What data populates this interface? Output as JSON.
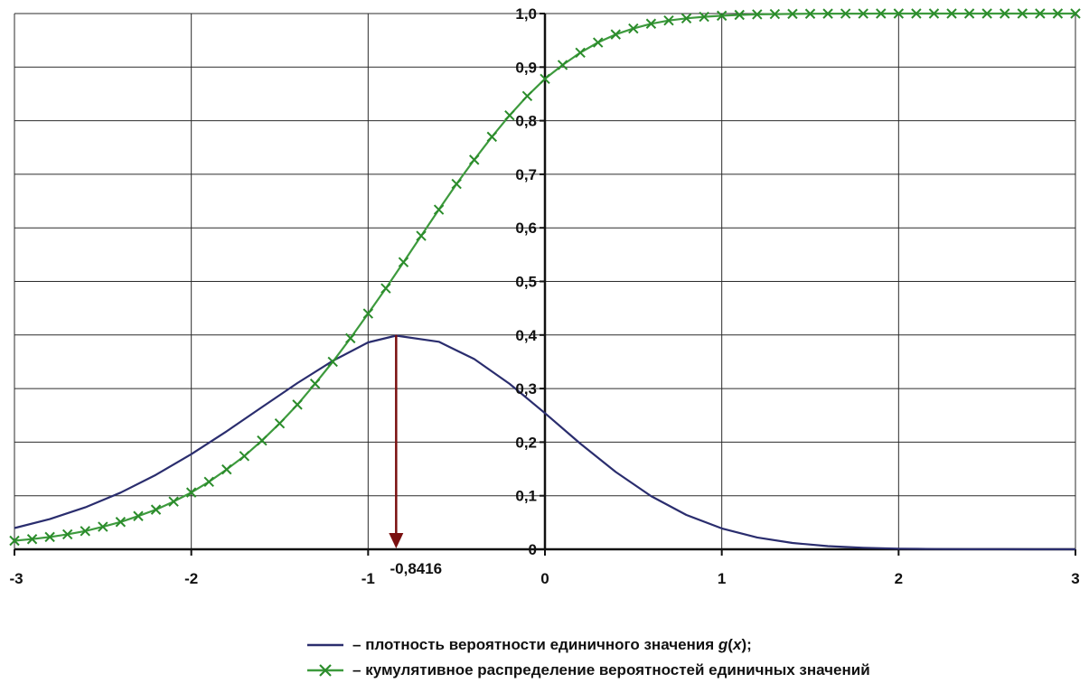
{
  "chart_data": {
    "type": "line",
    "x_range": [
      -3,
      3
    ],
    "y_range": [
      0,
      1.0
    ],
    "x_ticks": [
      {
        "value": -3,
        "label": "-3"
      },
      {
        "value": -2,
        "label": "-2"
      },
      {
        "value": -1,
        "label": "-1"
      },
      {
        "value": 0,
        "label": "0"
      },
      {
        "value": 1,
        "label": "1"
      },
      {
        "value": 2,
        "label": "2"
      },
      {
        "value": 3,
        "label": "3"
      }
    ],
    "y_ticks": [
      {
        "value": 0,
        "label": "0"
      },
      {
        "value": 0.1,
        "label": "0,1"
      },
      {
        "value": 0.2,
        "label": "0,2"
      },
      {
        "value": 0.3,
        "label": "0,3"
      },
      {
        "value": 0.4,
        "label": "0,4"
      },
      {
        "value": 0.5,
        "label": "0,5"
      },
      {
        "value": 0.6,
        "label": "0,6"
      },
      {
        "value": 0.7,
        "label": "0,7"
      },
      {
        "value": 0.8,
        "label": "0,8"
      },
      {
        "value": 0.9,
        "label": "0,9"
      },
      {
        "value": 1.0,
        "label": "1,0"
      }
    ],
    "grid": true,
    "series": [
      {
        "key": "density",
        "color": "#2a2d6e",
        "marker": "none",
        "x": [
          -3.0,
          -2.8,
          -2.6,
          -2.4,
          -2.2,
          -2.0,
          -1.8,
          -1.6,
          -1.4,
          -1.2,
          -1.0,
          -0.8416,
          -0.6,
          -0.4,
          -0.2,
          0.0,
          0.2,
          0.4,
          0.6,
          0.8,
          1.0,
          1.2,
          1.4,
          1.6,
          1.8,
          2.0,
          2.2,
          2.4,
          2.6,
          2.8,
          3.0
        ],
        "y": [
          0.0396,
          0.0564,
          0.0783,
          0.1058,
          0.139,
          0.1775,
          0.2203,
          0.2654,
          0.3103,
          0.3518,
          0.3862,
          0.3989,
          0.3874,
          0.3551,
          0.3087,
          0.2541,
          0.1973,
          0.1443,
          0.0993,
          0.0641,
          0.0389,
          0.0221,
          0.0118,
          0.0059,
          0.0028,
          0.0012,
          0.0005,
          0.0002,
          0.0001,
          0.0,
          0.0
        ]
      },
      {
        "key": "cumulative",
        "color": "#2b8c2b",
        "line_color": "#3d9a3d",
        "marker": "x",
        "x": [
          -3.0,
          -2.9,
          -2.8,
          -2.7,
          -2.6,
          -2.5,
          -2.4,
          -2.3,
          -2.2,
          -2.1,
          -2.0,
          -1.9,
          -1.8,
          -1.7,
          -1.6,
          -1.5,
          -1.4,
          -1.3,
          -1.2,
          -1.1,
          -1.0,
          -0.9,
          -0.8,
          -0.7,
          -0.6,
          -0.5,
          -0.4,
          -0.3,
          -0.2,
          -0.1,
          0.0,
          0.1,
          0.2,
          0.3,
          0.4,
          0.5,
          0.6,
          0.7,
          0.8,
          0.9,
          1.0,
          1.1,
          1.2,
          1.3,
          1.4,
          1.5,
          1.6,
          1.7,
          1.8,
          1.9,
          2.0,
          2.1,
          2.2,
          2.3,
          2.4,
          2.5,
          2.6,
          2.7,
          2.8,
          2.9,
          3.0
        ],
        "y": [
          0.016,
          0.019,
          0.023,
          0.028,
          0.034,
          0.042,
          0.051,
          0.062,
          0.074,
          0.089,
          0.106,
          0.126,
          0.149,
          0.174,
          0.203,
          0.235,
          0.27,
          0.309,
          0.35,
          0.394,
          0.44,
          0.487,
          0.536,
          0.585,
          0.634,
          0.682,
          0.727,
          0.77,
          0.81,
          0.846,
          0.878,
          0.904,
          0.927,
          0.946,
          0.961,
          0.972,
          0.981,
          0.987,
          0.991,
          0.994,
          0.996,
          0.9975,
          0.9984,
          0.999,
          0.9994,
          0.9996,
          0.9998,
          0.9999,
          0.9999,
          1.0,
          1.0,
          1.0,
          1.0,
          1.0,
          1.0,
          1.0,
          1.0,
          1.0,
          1.0,
          1.0,
          1.0
        ]
      }
    ],
    "annotation": {
      "label": "-0,8416",
      "x": -0.8416,
      "y_from": 0.4,
      "y_to": 0,
      "color": "#7a1010"
    },
    "legend": {
      "placement": "bottom-center",
      "items": [
        {
          "dash": "–",
          "text_prefix": "плотность вероятности единичного значения ",
          "text_italic": "g",
          "text_mid": "(",
          "text_italic2": "x",
          "text_suffix": ");"
        },
        {
          "dash": "–",
          "text": "кумулятивное распределение вероятностей единичных значений"
        }
      ]
    }
  }
}
